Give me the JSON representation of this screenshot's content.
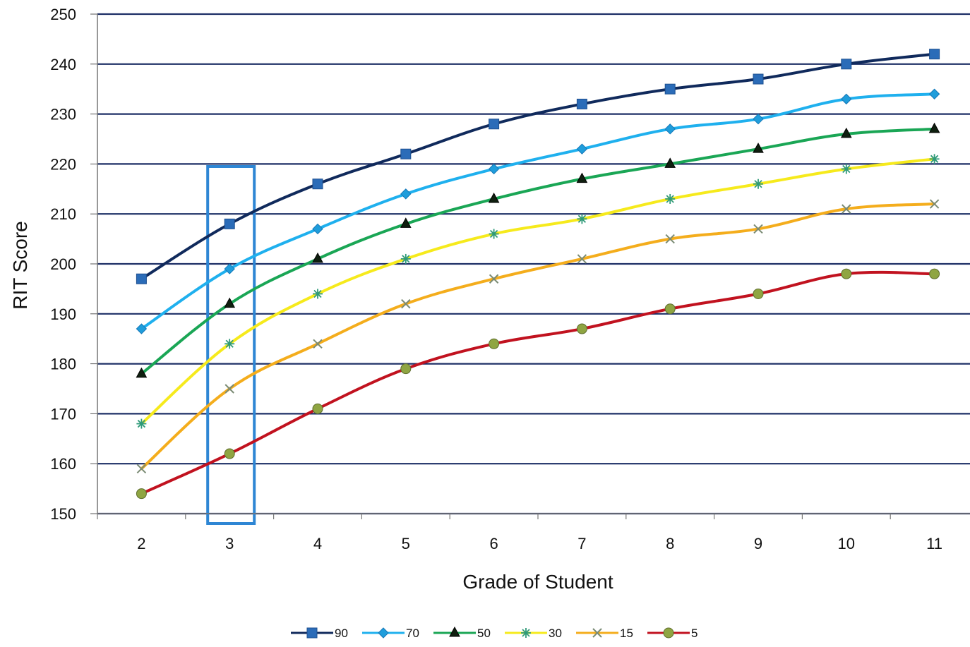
{
  "chart_data": {
    "type": "line",
    "xlabel": "Grade of Student",
    "ylabel": "RIT Score",
    "categories": [
      "2",
      "3",
      "4",
      "5",
      "6",
      "7",
      "8",
      "9",
      "10",
      "11"
    ],
    "ylim": [
      150,
      250
    ],
    "yticks": [
      "150",
      "160",
      "170",
      "180",
      "190",
      "200",
      "210",
      "220",
      "230",
      "240",
      "250"
    ],
    "grid": "horizontal",
    "legend_position": "bottom",
    "highlight": {
      "category": "3",
      "color": "#2e86d4"
    },
    "series": [
      {
        "name": "90",
        "color": "#102a5c",
        "marker_color": "#2b6cb8",
        "marker": "square",
        "values": [
          197,
          208,
          216,
          222,
          228,
          232,
          235,
          237,
          240,
          242
        ]
      },
      {
        "name": "70",
        "color": "#1fb0ee",
        "marker_color": "#1f9ddb",
        "marker": "diamond",
        "values": [
          187,
          199,
          207,
          214,
          219,
          223,
          227,
          229,
          233,
          234
        ]
      },
      {
        "name": "50",
        "color": "#1aa655",
        "marker_color": "#0f1f0f",
        "marker": "triangle",
        "values": [
          178,
          192,
          201,
          208,
          213,
          217,
          220,
          223,
          226,
          227
        ]
      },
      {
        "name": "30",
        "color": "#f6ea1c",
        "marker_color": "#2f9a79",
        "marker": "asterisk",
        "values": [
          168,
          184,
          194,
          201,
          206,
          209,
          213,
          216,
          219,
          221
        ]
      },
      {
        "name": "15",
        "color": "#f4ad1c",
        "marker_color": "#7a8b74",
        "marker": "x",
        "values": [
          159,
          175,
          184,
          192,
          197,
          201,
          205,
          207,
          211,
          212
        ]
      },
      {
        "name": "5",
        "color": "#c1121f",
        "marker_color": "#8fa542",
        "marker": "circle",
        "values": [
          154,
          162,
          171,
          179,
          184,
          187,
          191,
          194,
          198,
          198
        ]
      }
    ]
  }
}
